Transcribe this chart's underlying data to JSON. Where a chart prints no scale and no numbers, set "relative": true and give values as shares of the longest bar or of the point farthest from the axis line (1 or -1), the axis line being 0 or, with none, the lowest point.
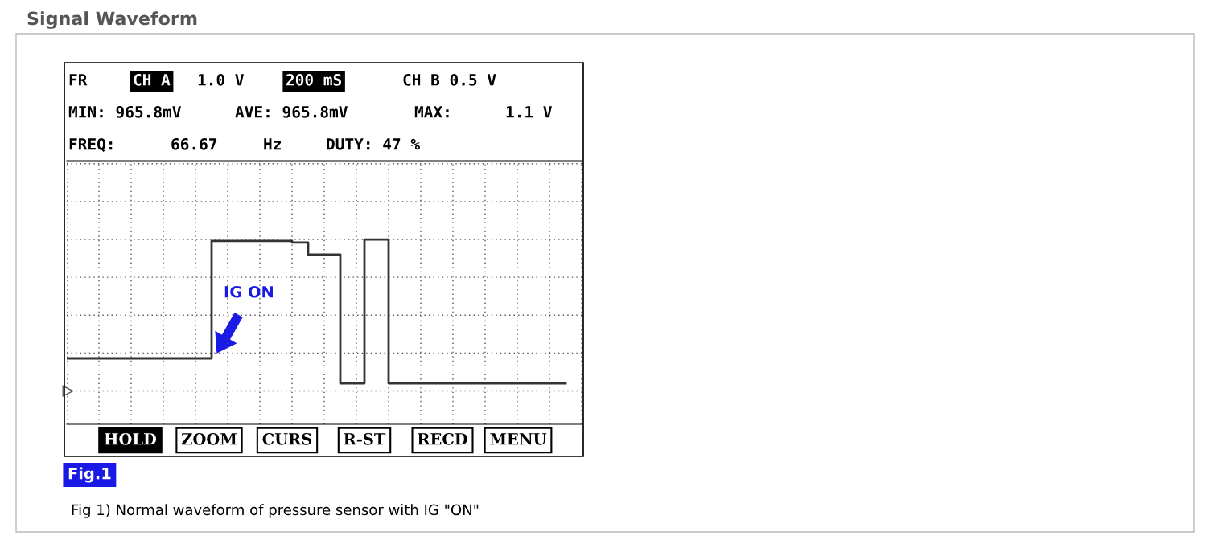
{
  "chart_data": {
    "type": "step",
    "title": "Signal Waveform",
    "categories": [
      null,
      null,
      null,
      null,
      null,
      null,
      null,
      null,
      null,
      null,
      null,
      null,
      null,
      null,
      null,
      null,
      null,
      null,
      null,
      null,
      null,
      null,
      null,
      null,
      null,
      null,
      null,
      null,
      null,
      null,
      null,
      null,
      null,
      null,
      null,
      null,
      null,
      null,
      null,
      null,
      null,
      null,
      null,
      null,
      null,
      null,
      null,
      null,
      null,
      null,
      null,
      null,
      null,
      null,
      null,
      null,
      null,
      null,
      null,
      null,
      null,
      null,
      null
    ],
    "values": [
      0.215,
      0.215,
      0.215,
      0.215,
      0.215,
      0.215,
      0.215,
      0.215,
      0.215,
      0.215,
      0.215,
      0.215,
      0.215,
      0.215,
      0.215,
      0.215,
      0.215,
      0.215,
      0.99,
      0.99,
      0.99,
      0.99,
      0.99,
      0.99,
      0.99,
      0.99,
      0.99,
      0.99,
      0.98,
      0.98,
      0.9,
      0.9,
      0.9,
      0.9,
      0.05,
      0.05,
      0.05,
      1.0,
      1.0,
      1.0,
      0.05,
      0.05,
      0.05,
      0.05,
      0.05,
      0.05,
      0.05,
      0.05,
      0.05,
      0.05,
      0.05,
      0.05,
      0.05,
      0.05,
      0.05,
      0.05,
      0.05,
      0.05,
      0.05,
      0.05,
      0.05,
      0.05,
      0.05
    ],
    "color": "#333333",
    "relative": true,
    "grid": true,
    "annotations": [
      "FR",
      "CH A",
      "1.0 V",
      "200 mS",
      "CH B 0.5 V",
      "MIN: 965.8mV",
      "AVE: 965.8mV",
      "MAX:",
      "1.1 V",
      "FREQ:",
      "66.67",
      "Hz",
      "DUTY: 47 %",
      "HOLD",
      "ZOOM",
      "CURS",
      "R-ST",
      "RECD",
      "MENU",
      "Fig.1",
      "Fig 1) Normal waveform of pressure sensor with IG \"ON\"",
      "IG ON"
    ]
  }
}
